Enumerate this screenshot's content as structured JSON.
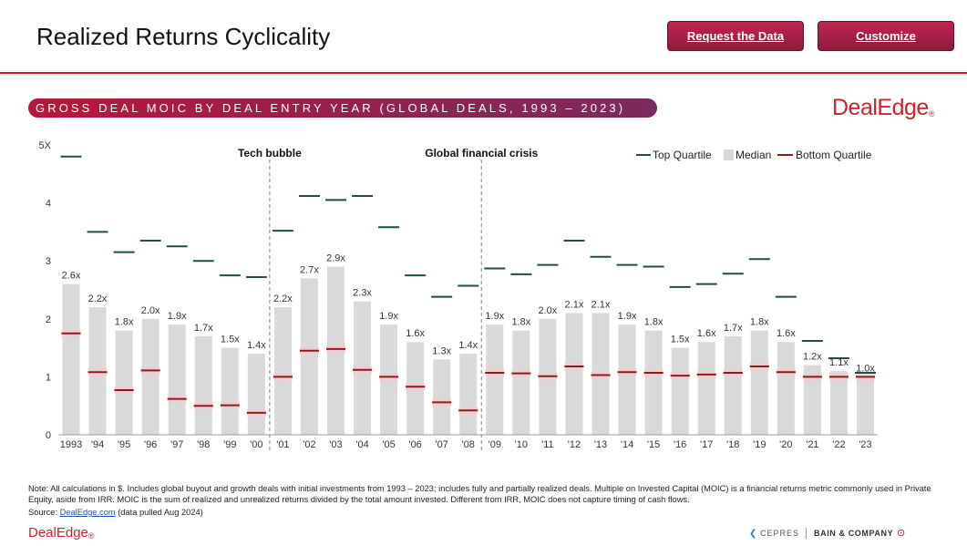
{
  "header": {
    "title": "Realized Returns Cyclicality",
    "request_label": "Request the Data",
    "customize_label": "Customize"
  },
  "subtitle": "GROSS DEAL MOIC BY DEAL ENTRY YEAR (GLOBAL DEALS, 1993 – 2023)",
  "brand": {
    "top": "DealEdge",
    "bottom": "DealEdge",
    "reg": "®"
  },
  "colors": {
    "accent": "#cc1f2f",
    "top_quartile": "#1f4e45",
    "median_bar": "#d9d9d9",
    "bottom_quartile": "#8b1a1a"
  },
  "chart_data": {
    "type": "bar",
    "categories": [
      "1993",
      "'94",
      "'95",
      "'96",
      "'97",
      "'98",
      "'99",
      "'00",
      "'01",
      "'02",
      "'03",
      "'04",
      "'05",
      "'06",
      "'07",
      "'08",
      "'09",
      "'10",
      "'11",
      "'12",
      "'13",
      "'14",
      "'15",
      "'16",
      "'17",
      "'18",
      "'19",
      "'20",
      "'21",
      "'22",
      "'23"
    ],
    "series": [
      {
        "name": "Median",
        "values": [
          2.6,
          2.2,
          1.8,
          2.0,
          1.9,
          1.7,
          1.5,
          1.4,
          2.2,
          2.7,
          2.9,
          2.3,
          1.9,
          1.6,
          1.3,
          1.4,
          1.9,
          1.8,
          2.0,
          2.1,
          2.1,
          1.9,
          1.8,
          1.5,
          1.6,
          1.7,
          1.8,
          1.6,
          1.2,
          1.1,
          1.0
        ]
      },
      {
        "name": "Top Quartile",
        "values": [
          4.8,
          3.5,
          3.15,
          3.35,
          3.25,
          3.0,
          2.75,
          2.72,
          3.52,
          4.12,
          4.05,
          4.12,
          3.58,
          2.75,
          2.38,
          2.57,
          2.87,
          2.77,
          2.93,
          3.35,
          3.07,
          2.93,
          2.9,
          2.55,
          2.6,
          2.78,
          3.03,
          2.38,
          1.62,
          1.32,
          1.07
        ]
      },
      {
        "name": "Bottom Quartile",
        "values": [
          1.75,
          1.08,
          0.77,
          1.11,
          0.62,
          0.5,
          0.51,
          0.38,
          1.0,
          1.45,
          1.48,
          1.12,
          1.0,
          0.83,
          0.56,
          0.42,
          1.07,
          1.06,
          1.01,
          1.18,
          1.03,
          1.08,
          1.07,
          1.02,
          1.04,
          1.07,
          1.18,
          1.08,
          1.0,
          1.0,
          1.0
        ]
      }
    ],
    "data_labels": [
      "2.6x",
      "2.2x",
      "1.8x",
      "2.0x",
      "1.9x",
      "1.7x",
      "1.5x",
      "1.4x",
      "2.2x",
      "2.7x",
      "2.9x",
      "2.3x",
      "1.9x",
      "1.6x",
      "1.3x",
      "1.4x",
      "1.9x",
      "1.8x",
      "2.0x",
      "2.1x",
      "2.1x",
      "1.9x",
      "1.8x",
      "1.5x",
      "1.6x",
      "1.7x",
      "1.8x",
      "1.6x",
      "1.2x",
      "1.1x",
      "1.0x"
    ],
    "y_ticks": [
      "0",
      "1",
      "2",
      "3",
      "4",
      "5X"
    ],
    "ylim": [
      0,
      5
    ],
    "annotations": [
      {
        "label": "Tech bubble",
        "after_index": 7
      },
      {
        "label": "Global financial crisis",
        "after_index": 15
      }
    ],
    "legend": [
      "Top Quartile",
      "Median",
      "Bottom Quartile"
    ],
    "legend_position": "top-right"
  },
  "footer": {
    "note": "Note: All calculations in $. Includes global buyout and growth deals with initial investments from 1993 – 2023; includes fully and partially realized deals. Multiple on Invested Capital (MOIC) is a financial returns metric commonly used in Private Equity, aside from IRR. MOIC is the sum of realized and unrealized returns divided by the total amount invested. Different from IRR, MOIC does not capture timing of cash flows.",
    "source_prefix": "Source: ",
    "source_link": "DealEdge.com",
    "source_suffix": " (data pulled Aug 2024)",
    "cepres": "CEPRES",
    "bain": "BAIN & COMPANY"
  }
}
